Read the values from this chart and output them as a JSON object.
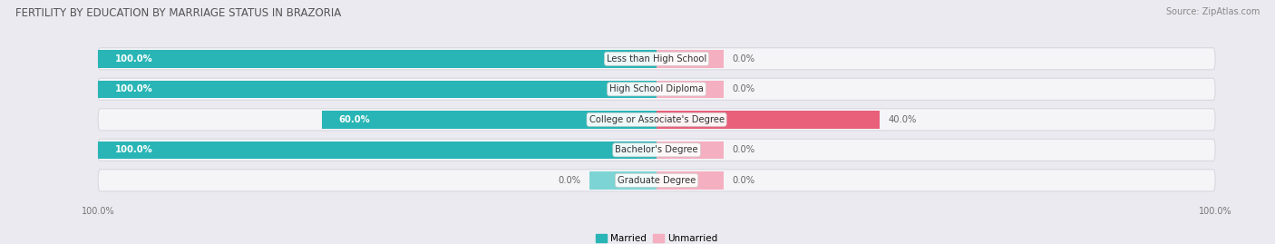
{
  "title": "FERTILITY BY EDUCATION BY MARRIAGE STATUS IN BRAZORIA",
  "source": "Source: ZipAtlas.com",
  "categories": [
    "Less than High School",
    "High School Diploma",
    "College or Associate's Degree",
    "Bachelor's Degree",
    "Graduate Degree"
  ],
  "married_values": [
    100.0,
    100.0,
    60.0,
    100.0,
    0.0
  ],
  "unmarried_values": [
    0.0,
    0.0,
    40.0,
    0.0,
    0.0
  ],
  "married_color": "#29b5b5",
  "unmarried_color": "#e8607a",
  "married_color_light": "#7dd4d4",
  "unmarried_color_light": "#f4afc0",
  "bg_color": "#eaeaf0",
  "row_bg_color": "#f5f5f8",
  "row_border_color": "#d8d8e0",
  "title_color": "#555555",
  "source_color": "#888888",
  "value_color_on_bar": "#ffffff",
  "value_color_off_bar": "#666666",
  "title_fontsize": 8.5,
  "source_fontsize": 7,
  "label_fontsize": 7.2,
  "value_fontsize": 7.2,
  "legend_fontsize": 7.5,
  "axis_label_fontsize": 7,
  "x_min": -100,
  "x_max": 100,
  "stub_size": 12
}
